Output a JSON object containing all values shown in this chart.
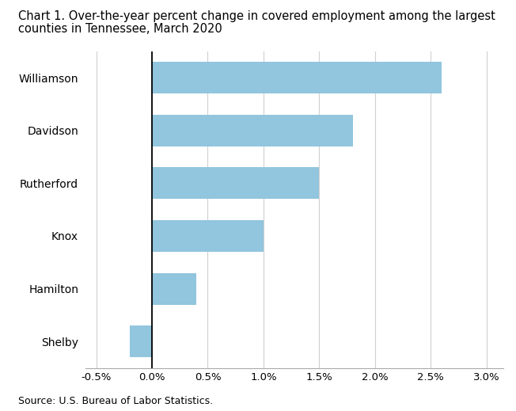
{
  "title_line1": "Chart 1. Over-the-year percent change in covered employment among the largest",
  "title_line2": "counties in Tennessee, March 2020",
  "categories": [
    "Shelby",
    "Hamilton",
    "Knox",
    "Rutherford",
    "Davidson",
    "Williamson"
  ],
  "values": [
    -0.002,
    0.004,
    0.01,
    0.015,
    0.018,
    0.026
  ],
  "bar_color": "#92c5de",
  "xlim_left": -0.006,
  "xlim_right": 0.0315,
  "xtick_vals": [
    -0.005,
    0.0,
    0.005,
    0.01,
    0.015,
    0.02,
    0.025,
    0.03
  ],
  "xtick_labels": [
    "-0.5%",
    "0.0%",
    "0.5%",
    "1.0%",
    "1.5%",
    "2.0%",
    "2.5%",
    "3.0%"
  ],
  "source": "Source: U.S. Bureau of Labor Statistics.",
  "title_fontsize": 10.5,
  "tick_fontsize": 9.5,
  "source_fontsize": 9,
  "ylabel_fontsize": 10,
  "bar_height": 0.6,
  "background_color": "#ffffff",
  "grid_color": "#d0d0d0",
  "zero_line_color": "#000000"
}
